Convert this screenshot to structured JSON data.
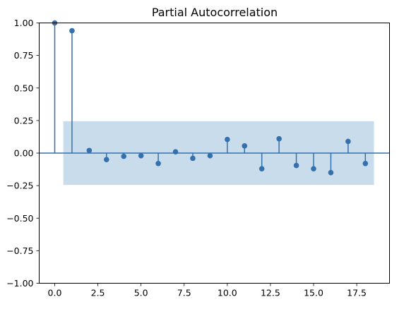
{
  "chart_data": {
    "type": "stem",
    "title": "Partial Autocorrelation",
    "xlabel": "",
    "ylabel": "",
    "xlim": [
      -0.9,
      19.4
    ],
    "ylim": [
      -1.0,
      1.0
    ],
    "xticks": [
      0.0,
      2.5,
      5.0,
      7.5,
      10.0,
      12.5,
      15.0,
      17.5
    ],
    "xtick_labels": [
      "0.0",
      "2.5",
      "5.0",
      "7.5",
      "10.0",
      "12.5",
      "15.0",
      "17.5"
    ],
    "yticks": [
      1.0,
      0.75,
      0.5,
      0.25,
      0.0,
      -0.25,
      -0.5,
      -0.75,
      -1.0
    ],
    "ytick_labels": [
      "1.00",
      "0.75",
      "0.50",
      "0.25",
      "0.00",
      "−0.25",
      "−0.50",
      "−0.75",
      "−1.00"
    ],
    "grid": false,
    "lags": [
      0,
      1,
      2,
      3,
      4,
      5,
      6,
      7,
      8,
      9,
      10,
      11,
      12,
      13,
      14,
      15,
      16,
      17,
      18
    ],
    "pacf": [
      1.0,
      0.94,
      0.02,
      -0.05,
      -0.025,
      -0.02,
      -0.08,
      0.01,
      -0.04,
      -0.02,
      0.105,
      0.055,
      -0.12,
      0.11,
      -0.095,
      -0.12,
      -0.15,
      0.09,
      -0.08
    ],
    "confidence_band": {
      "x_range": [
        0.5,
        18.5
      ],
      "lower": -0.245,
      "upper": 0.245
    },
    "colors": {
      "marker": "#3471ac",
      "stem": "#3471ac",
      "baseline": "#3471ac",
      "band": "#c9dcec"
    }
  }
}
